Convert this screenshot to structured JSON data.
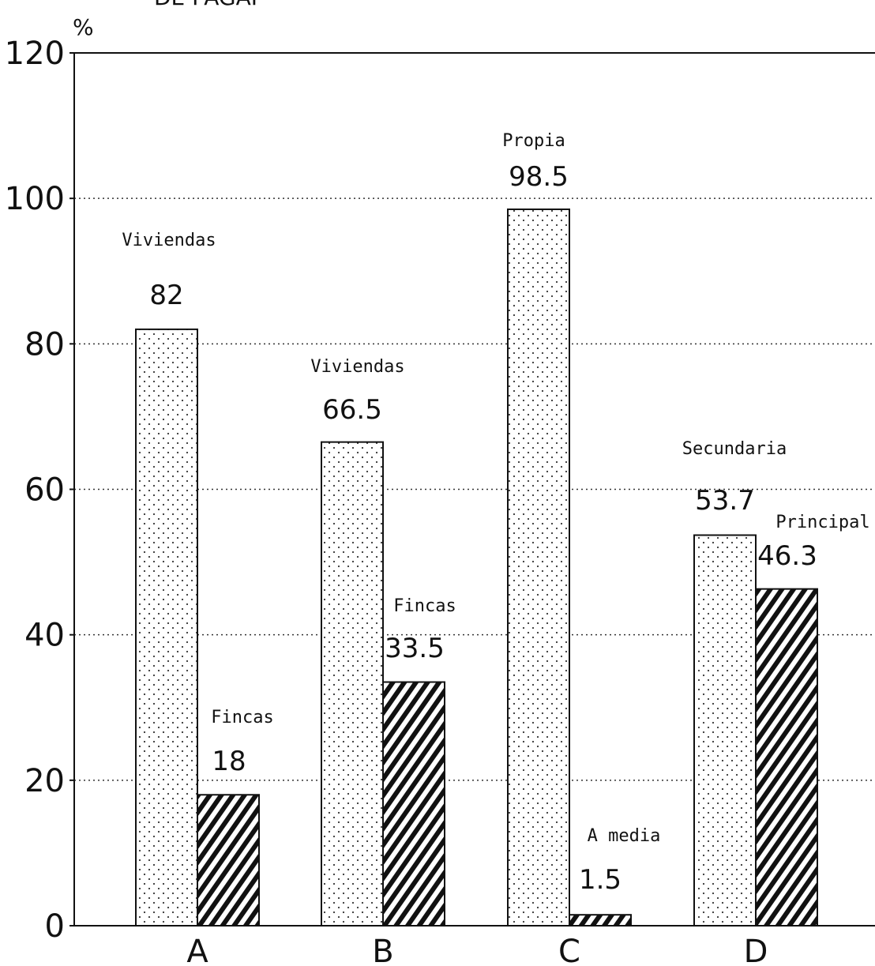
{
  "chart_data": {
    "type": "bar",
    "title": "DE PAGAP",
    "ylabel": "%",
    "xlabel": "",
    "categories": [
      "A",
      "B",
      "C",
      "D"
    ],
    "ylim": [
      0,
      120
    ],
    "yticks": [
      0,
      20,
      40,
      60,
      80,
      100,
      120
    ],
    "grid": true,
    "legend": "none",
    "series": [
      {
        "pattern": "dotted",
        "values": [
          82,
          66.5,
          98.5,
          53.7
        ],
        "value_labels": [
          "82",
          "66.5",
          "98.5",
          "53.7"
        ],
        "annotations": [
          "Viviendas",
          "Viviendas",
          "Propia",
          "Secundaria"
        ]
      },
      {
        "pattern": "hatched",
        "values": [
          18,
          33.5,
          1.5,
          46.3
        ],
        "value_labels": [
          "18",
          "33.5",
          "1.5",
          "46.3"
        ],
        "annotations": [
          "Fincas",
          "Fincas",
          "A media",
          "Principal"
        ]
      }
    ],
    "colors": {
      "ink": "#111111",
      "background": "#ffffff"
    }
  }
}
